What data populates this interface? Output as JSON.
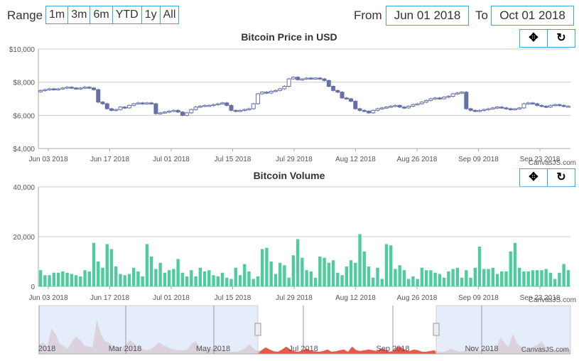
{
  "range": {
    "label": "Range",
    "buttons": [
      "1m",
      "3m",
      "6m",
      "YTD",
      "1y",
      "All"
    ],
    "from_label": "From",
    "from_value": "Jun 01 2018",
    "to_label": "To",
    "to_value": "Oct 01 2018"
  },
  "toolbar": {
    "pan_icon": "pan-icon",
    "reset_icon": "reset-icon"
  },
  "credit": "CanvasJS.com",
  "colors": {
    "candle": "#6670a8",
    "volume": "#4fcb9d",
    "navigator_area": "#e6a9a9",
    "navigator_selected": "#e25b4b",
    "accent": "#38a9e0"
  },
  "chart_data": [
    {
      "type": "candlestick",
      "title": "Bitcoin Price in USD",
      "x_tick_labels": [
        "Jun 03 2018",
        "Jun 17 2018",
        "Jul 01 2018",
        "Jul 15 2018",
        "Jul 29 2018",
        "Aug 12 2018",
        "Aug 26 2018",
        "Sep 09 2018",
        "Sep 23 2018"
      ],
      "y_tick_labels": [
        "$4,000",
        "$6,000",
        "$8,000",
        "$10,000"
      ],
      "ylim": [
        4000,
        10000
      ],
      "x_range": [
        "Jun 01 2018",
        "Oct 01 2018"
      ],
      "grid": true,
      "series": [
        {
          "close": [
            7500,
            7550,
            7600,
            7550,
            7600,
            7650,
            7700,
            7650,
            7600,
            7650,
            7700,
            7650,
            7550,
            6800,
            6700,
            6400,
            6300,
            6350,
            6500,
            6450,
            6600,
            6700,
            6750,
            6700,
            6750,
            6700,
            6100,
            6150,
            6200,
            6250,
            6300,
            6200,
            6000,
            6150,
            6350,
            6500,
            6550,
            6600,
            6600,
            6650,
            6700,
            6750,
            6600,
            6300,
            6250,
            6300,
            6350,
            6400,
            6700,
            7300,
            7400,
            7350,
            7450,
            7500,
            7600,
            7750,
            8200,
            8300,
            8150,
            8200,
            8250,
            8200,
            8250,
            8200,
            8100,
            7750,
            7500,
            7400,
            7050,
            7000,
            6850,
            6400,
            6300,
            6250,
            6150,
            6300,
            6400,
            6450,
            6500,
            6550,
            6600,
            6500,
            6450,
            6550,
            6650,
            6700,
            6800,
            6900,
            7000,
            7050,
            7000,
            7100,
            7150,
            7300,
            7350,
            7400,
            6400,
            6300,
            6250,
            6300,
            6350,
            6400,
            6450,
            6500,
            6450,
            6400,
            6350,
            6400,
            6450,
            6700,
            6750,
            6700,
            6600,
            6550,
            6500,
            6600,
            6650,
            6600,
            6550,
            6550
          ]
        }
      ]
    },
    {
      "type": "bar",
      "title": "Bitcoin Volume",
      "x_tick_labels": [
        "Jun 03 2018",
        "Jun 17 2018",
        "Jul 01 2018",
        "Jul 15 2018",
        "Jul 29 2018",
        "Aug 12 2018",
        "Aug 26 2018",
        "Sep 09 2018",
        "Sep 23 2018"
      ],
      "y_tick_labels": [
        "0",
        "20,000",
        "40,000"
      ],
      "ylim": [
        0,
        40000
      ],
      "grid": true,
      "series": [
        {
          "values": [
            6500,
            4500,
            4500,
            5500,
            5500,
            6000,
            5500,
            5000,
            4500,
            4000,
            6500,
            6000,
            17500,
            10000,
            7500,
            17000,
            15000,
            8000,
            5000,
            4500,
            5000,
            7500,
            6000,
            4000,
            17000,
            12000,
            7000,
            9500,
            5500,
            6500,
            7000,
            11000,
            5500,
            4000,
            6500,
            4000,
            7500,
            6000,
            6500,
            4500,
            4000,
            5500,
            3500,
            3000,
            7500,
            4500,
            9000,
            6000,
            3000,
            4000,
            15000,
            15500,
            10000,
            5000,
            9500,
            8500,
            3500,
            12500,
            19000,
            11500,
            6500,
            6000,
            3500,
            12000,
            11500,
            9500,
            10500,
            5500,
            4500,
            8000,
            10500,
            9500,
            21000,
            14000,
            8000,
            3500,
            7500,
            3000,
            17000,
            16500,
            7000,
            8500,
            6500,
            3000,
            4000,
            3000,
            7500,
            6500,
            6500,
            5500,
            5000,
            3500,
            6000,
            7000,
            7500,
            3500,
            6500,
            3500,
            7500,
            16000,
            7000,
            7000,
            7500,
            5000,
            6000,
            6000,
            14000,
            17500,
            7500,
            6000,
            6000,
            6500,
            6500,
            6500,
            7000,
            5500,
            3000,
            5500,
            9000,
            6500
          ]
        }
      ]
    },
    {
      "type": "area",
      "title": "",
      "x_tick_labels": [
        "2018",
        "Mar 2018",
        "May 2018",
        "Jul 2018",
        "Sep 2018",
        "Nov 2018"
      ],
      "series": [
        {
          "values": [
            0.25,
            0.32,
            0.2,
            0.7,
            0.55,
            0.28,
            0.22,
            0.15,
            0.35,
            0.48,
            0.38,
            0.22,
            0.2,
            0.18,
            0.95,
            0.55,
            0.35,
            0.3,
            0.22,
            0.18,
            0.15,
            0.25,
            0.38,
            0.3,
            0.2,
            0.15,
            0.1,
            0.12,
            0.2,
            0.32,
            0.25,
            0.2,
            0.15,
            0.12,
            0.1,
            0.1,
            0.12,
            0.28,
            0.35,
            0.2,
            0.12,
            0.1,
            0.15,
            0.2,
            0.12,
            0.1,
            0.08,
            0.06,
            0.06,
            0.1,
            0.15,
            0.28,
            0.15,
            0.08,
            0.1,
            0.18,
            0.12,
            0.07,
            0.06,
            0.12,
            0.2,
            0.12,
            0.07,
            0.06,
            0.1,
            0.15,
            0.08,
            0.07,
            0.06,
            0.08,
            0.12,
            0.06,
            0.07,
            0.1,
            0.12,
            0.06,
            0.2,
            0.1,
            0.08,
            0.1,
            0.12,
            0.1,
            0.08,
            0.15,
            0.12,
            0.06,
            0.08,
            0.2,
            0.18,
            0.1,
            0.08,
            0.12,
            0.1,
            0.06,
            0.06,
            0.08,
            0.1,
            0.06,
            0.05,
            0.08,
            0.15,
            0.1,
            0.06,
            0.07,
            0.12,
            0.2,
            0.1,
            0.08,
            0.12,
            0.18,
            0.1,
            0.15,
            0.45,
            0.3,
            0.2,
            0.55,
            0.3,
            0.2,
            0.15,
            0.1,
            0.2,
            0.25,
            0.35,
            0.18,
            0.15,
            0.12,
            0.1,
            0.12,
            0.15,
            0.1
          ]
        }
      ],
      "selection": [
        "Jun 01 2018",
        "Oct 01 2018"
      ]
    }
  ]
}
